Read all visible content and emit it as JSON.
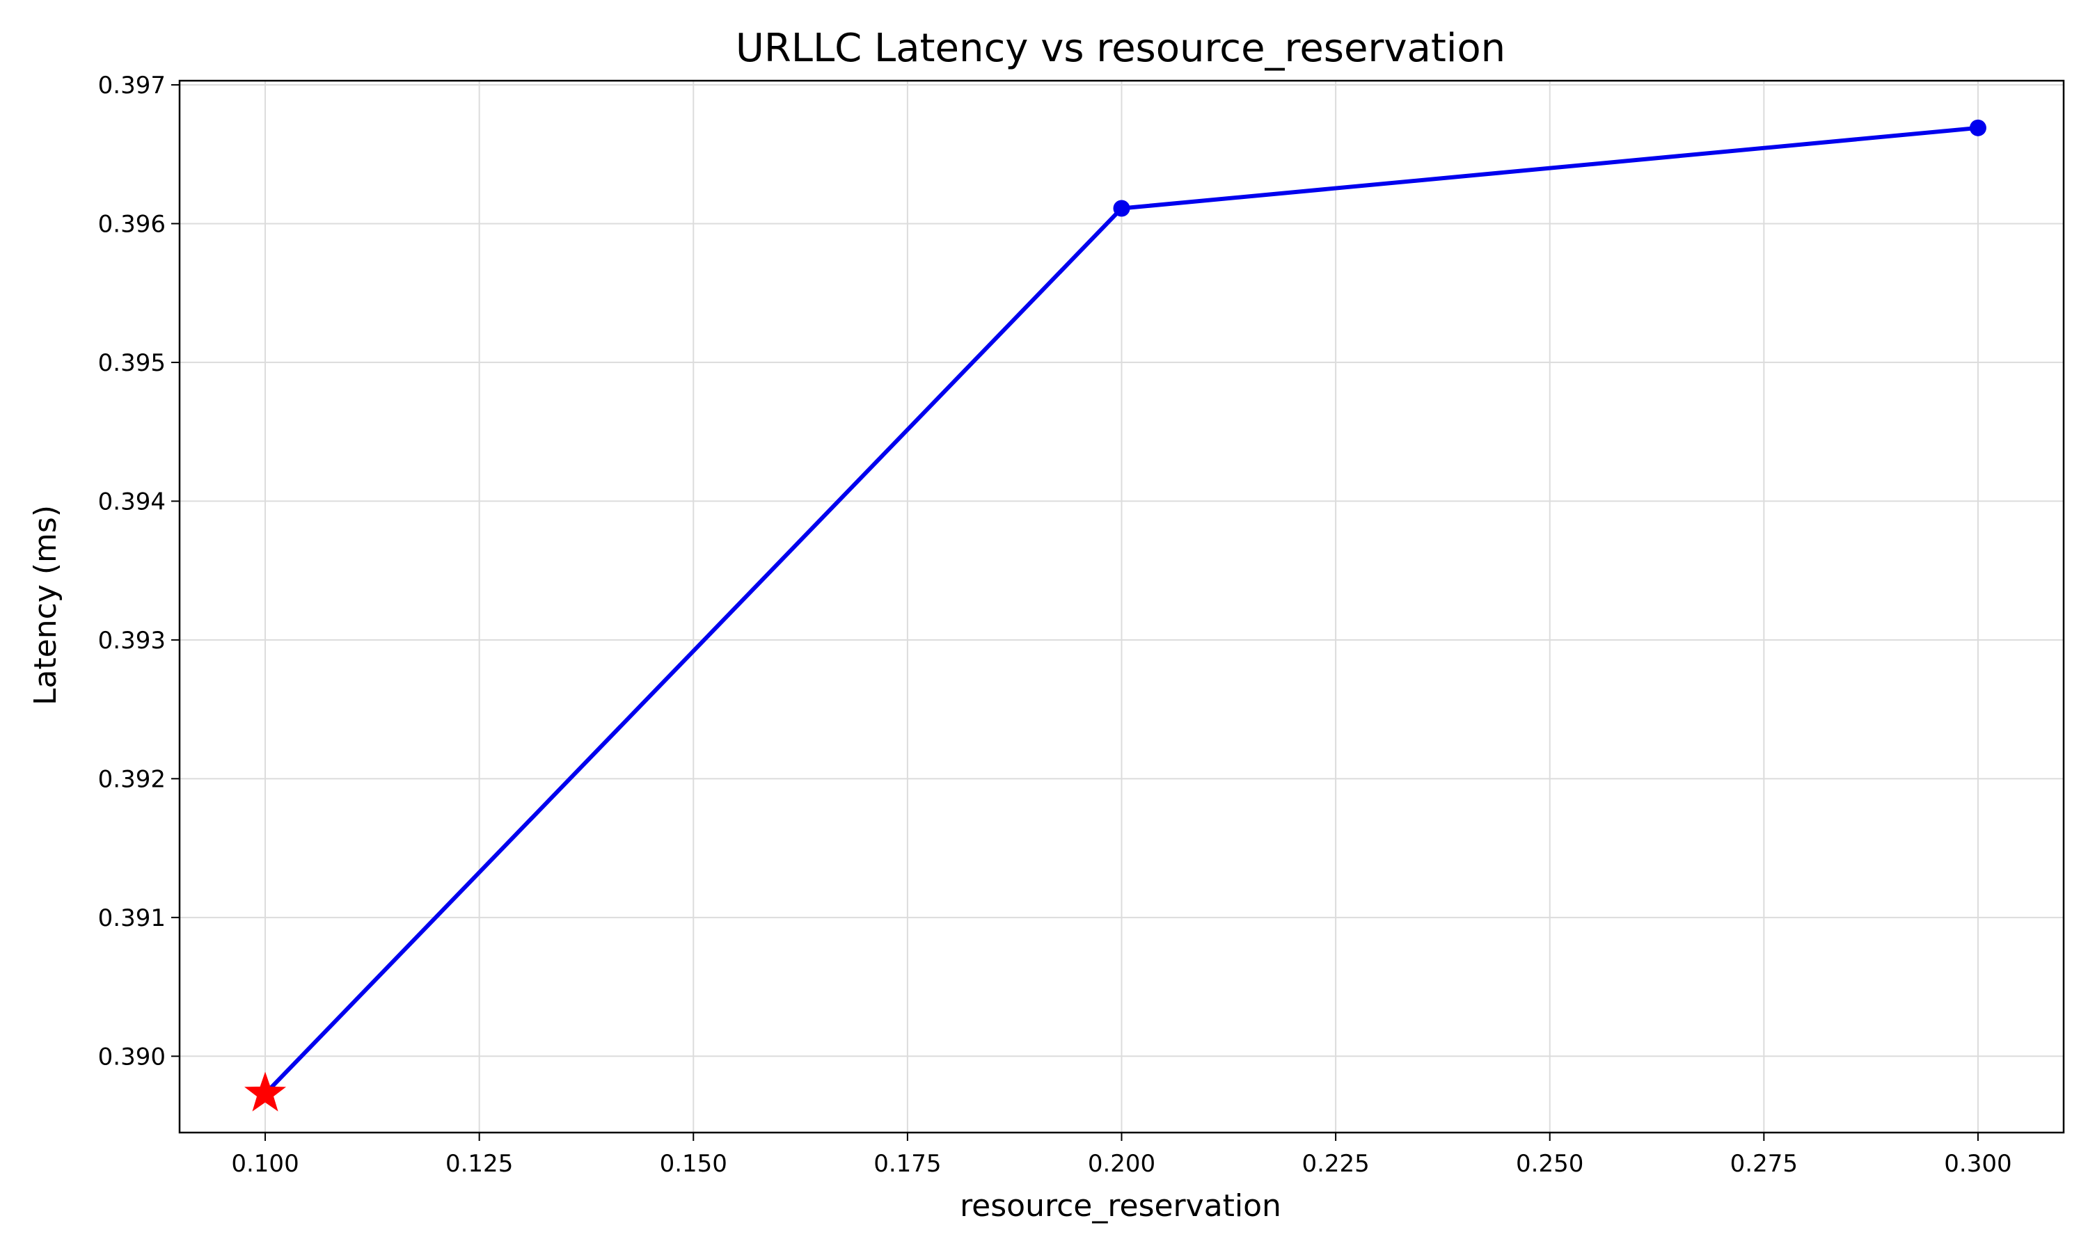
{
  "chart_data": {
    "type": "line",
    "title": "URLLC Latency vs resource_reservation",
    "xlabel": "resource_reservation",
    "ylabel": "Latency (ms)",
    "xlim": [
      0.09,
      0.31
    ],
    "ylim": [
      0.38945,
      0.39703
    ],
    "x_ticks": [
      "0.100",
      "0.125",
      "0.150",
      "0.175",
      "0.200",
      "0.225",
      "0.250",
      "0.275",
      "0.300"
    ],
    "y_ticks": [
      "0.390",
      "0.391",
      "0.392",
      "0.393",
      "0.394",
      "0.395",
      "0.396",
      "0.397"
    ],
    "grid": true,
    "series": [
      {
        "color": "#0000ee",
        "marker": "circle",
        "x": [
          0.1,
          0.2,
          0.3
        ],
        "y": [
          0.38973,
          0.39611,
          0.39669
        ]
      }
    ],
    "highlight": {
      "marker": "star",
      "color": "#ff0000",
      "x": 0.1,
      "y": 0.38973
    }
  }
}
